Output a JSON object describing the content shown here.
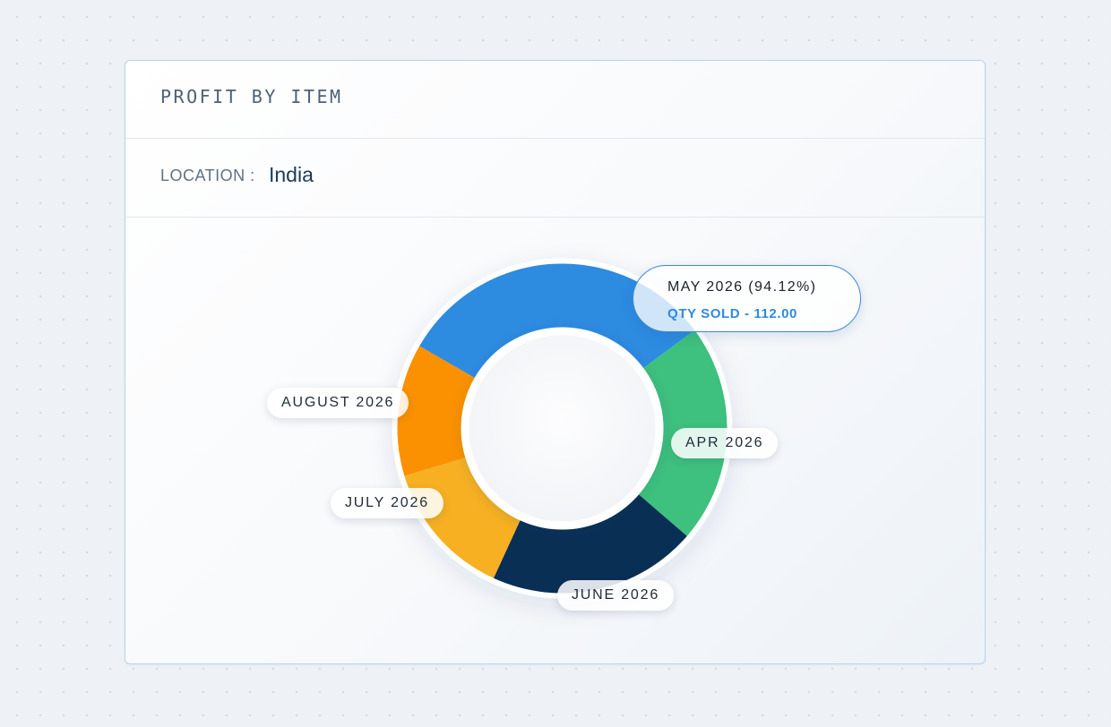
{
  "card": {
    "title": "PROFIT BY ITEM",
    "filter_label": "LOCATION :",
    "filter_value": "India"
  },
  "chart_data": {
    "type": "pie",
    "variant": "donut",
    "title": "PROFIT BY ITEM",
    "slices": [
      {
        "label": "MAY 2026",
        "value": 31.5,
        "color": "#2d8be0"
      },
      {
        "label": "APR 2026",
        "value": 21.5,
        "color": "#3ec07e"
      },
      {
        "label": "JUNE 2026",
        "value": 20.5,
        "color": "#0a2f55"
      },
      {
        "label": "JULY 2026",
        "value": 13.5,
        "color": "#f7b022"
      },
      {
        "label": "AUGUST 2026",
        "value": 13.0,
        "color": "#fb9100"
      }
    ],
    "tooltip": {
      "title": "MAY 2026 (94.12%)",
      "subtitle": "QTY SOLD - 112.00"
    }
  }
}
